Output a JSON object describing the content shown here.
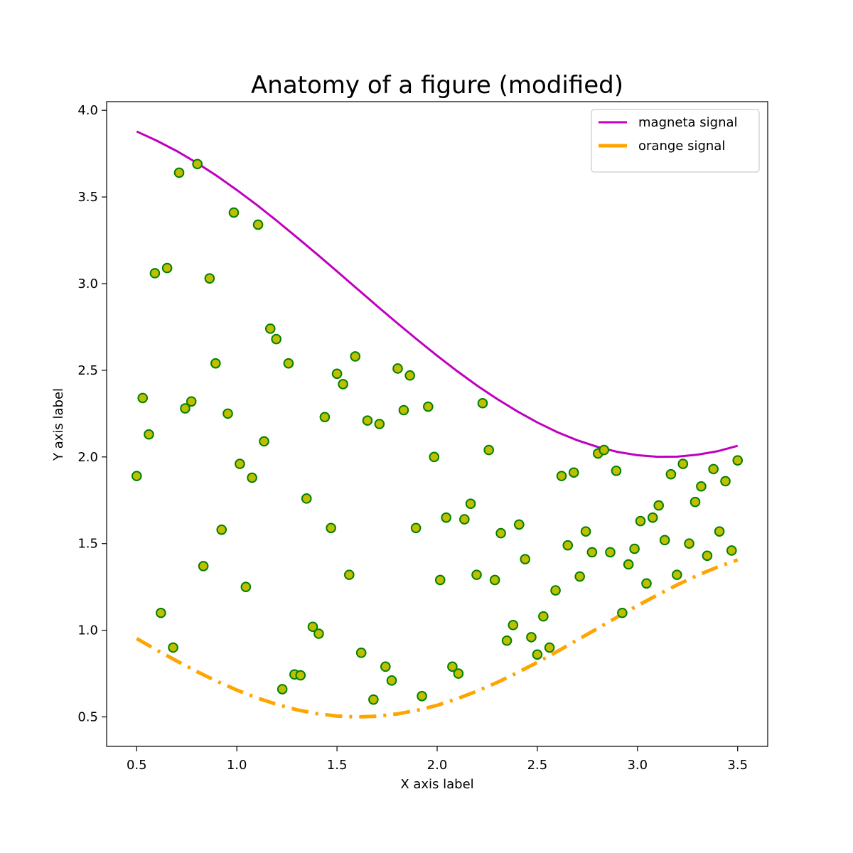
{
  "chart_data": {
    "type": "line",
    "title": "Anatomy of a figure (modified)",
    "xlabel": "X axis label",
    "ylabel": "Y axis label",
    "xlim": [
      0.35,
      3.65
    ],
    "ylim": [
      0.33,
      4.05
    ],
    "xticks": [
      0.5,
      {
        "value": 1,
        "label": "1.0"
      },
      1.5,
      {
        "value": 2,
        "label": "2.0"
      },
      2.5,
      {
        "value": 3,
        "label": "3.0"
      },
      3.5
    ],
    "yticks": [
      0.5,
      {
        "value": 1,
        "label": "1.0"
      },
      1.5,
      {
        "value": 2,
        "label": "2.0"
      },
      2.5,
      {
        "value": 3,
        "label": "3.0"
      },
      3.5,
      {
        "value": 4,
        "label": "4.0"
      }
    ],
    "grid": false,
    "legend": "upper right",
    "series": [
      {
        "name": "magneta signal",
        "type": "line",
        "color": "#bf00bf",
        "linestyle": "solid",
        "x": [
          0.5,
          0.6,
          0.7,
          0.8,
          0.9,
          1.0,
          1.1,
          1.2,
          1.3,
          1.4,
          1.5,
          1.6,
          1.7,
          1.8,
          1.9,
          2.0,
          2.1,
          2.2,
          2.3,
          2.4,
          2.5,
          2.6,
          2.7,
          2.8,
          2.9,
          3.0,
          3.1,
          3.2,
          3.3,
          3.4,
          3.5
        ],
        "values": [
          3.878,
          3.825,
          3.765,
          3.697,
          3.622,
          3.54,
          3.454,
          3.362,
          3.267,
          3.17,
          3.071,
          2.971,
          2.871,
          2.773,
          2.677,
          2.584,
          2.495,
          2.411,
          2.334,
          2.263,
          2.199,
          2.143,
          2.096,
          2.058,
          2.029,
          2.01,
          2.001,
          2.002,
          2.013,
          2.033,
          2.064
        ]
      },
      {
        "name": "orange signal",
        "type": "line",
        "color": "#ffa500",
        "linestyle": "dashdot",
        "x": [
          0.5,
          0.6,
          0.7,
          0.8,
          0.9,
          1.0,
          1.1,
          1.2,
          1.3,
          1.4,
          1.5,
          1.6,
          1.7,
          1.8,
          1.9,
          2.0,
          2.1,
          2.2,
          2.3,
          2.4,
          2.5,
          2.6,
          2.7,
          2.8,
          2.9,
          3.0,
          3.1,
          3.2,
          3.3,
          3.4,
          3.5
        ],
        "values": [
          0.952,
          0.886,
          0.823,
          0.762,
          0.706,
          0.655,
          0.61,
          0.572,
          0.541,
          0.519,
          0.505,
          0.5,
          0.504,
          0.517,
          0.538,
          0.567,
          0.605,
          0.649,
          0.699,
          0.755,
          0.815,
          0.878,
          0.944,
          1.01,
          1.077,
          1.142,
          1.204,
          1.263,
          1.317,
          1.365,
          1.406
        ]
      },
      {
        "type": "scatter",
        "color": "#bfbf00",
        "edgecolor": "#008000",
        "x": [
          0.5,
          0.53,
          0.561,
          0.591,
          0.621,
          0.652,
          0.682,
          0.712,
          0.742,
          0.773,
          0.803,
          0.833,
          0.864,
          0.894,
          0.924,
          0.955,
          0.985,
          1.015,
          1.045,
          1.076,
          1.106,
          1.136,
          1.167,
          1.197,
          1.227,
          1.258,
          1.288,
          1.318,
          1.348,
          1.379,
          1.409,
          1.439,
          1.47,
          1.5,
          1.53,
          1.561,
          1.591,
          1.621,
          1.652,
          1.682,
          1.712,
          1.742,
          1.773,
          1.803,
          1.833,
          1.864,
          1.894,
          1.924,
          1.955,
          1.985,
          2.015,
          2.045,
          2.076,
          2.106,
          2.136,
          2.167,
          2.197,
          2.227,
          2.258,
          2.288,
          2.318,
          2.348,
          2.379,
          2.409,
          2.439,
          2.47,
          2.5,
          2.53,
          2.561,
          2.591,
          2.621,
          2.652,
          2.682,
          2.712,
          2.742,
          2.773,
          2.803,
          2.833,
          2.864,
          2.894,
          2.924,
          2.955,
          2.985,
          3.015,
          3.045,
          3.076,
          3.106,
          3.136,
          3.167,
          3.197,
          3.227,
          3.258,
          3.288,
          3.318,
          3.348,
          3.379,
          3.409,
          3.439,
          3.47,
          3.5
        ],
        "values": [
          1.89,
          2.34,
          2.13,
          3.06,
          1.1,
          3.09,
          0.9,
          3.64,
          2.28,
          2.32,
          3.69,
          1.37,
          3.03,
          2.54,
          1.58,
          2.25,
          3.41,
          1.96,
          1.25,
          1.88,
          3.34,
          2.09,
          2.74,
          2.68,
          0.66,
          2.54,
          0.745,
          0.74,
          1.76,
          1.02,
          0.98,
          2.23,
          1.59,
          2.48,
          2.42,
          1.32,
          2.58,
          0.87,
          2.21,
          0.6,
          2.19,
          0.79,
          0.71,
          2.51,
          2.27,
          2.47,
          1.59,
          0.62,
          2.29,
          2.0,
          1.29,
          1.65,
          0.79,
          0.75,
          1.64,
          1.73,
          1.32,
          2.31,
          2.04,
          1.29,
          1.56,
          0.94,
          1.03,
          1.61,
          1.41,
          0.96,
          0.86,
          1.08,
          0.9,
          1.23,
          1.89,
          1.49,
          1.91,
          1.31,
          1.57,
          1.45,
          2.02,
          2.04,
          1.45,
          1.92,
          1.1,
          1.38,
          1.47,
          1.63,
          1.27,
          1.65,
          1.72,
          1.52,
          1.9,
          1.32,
          1.96,
          1.5,
          1.74,
          1.83,
          1.43,
          1.93,
          1.57,
          1.86,
          1.46,
          1.98
        ]
      }
    ]
  }
}
